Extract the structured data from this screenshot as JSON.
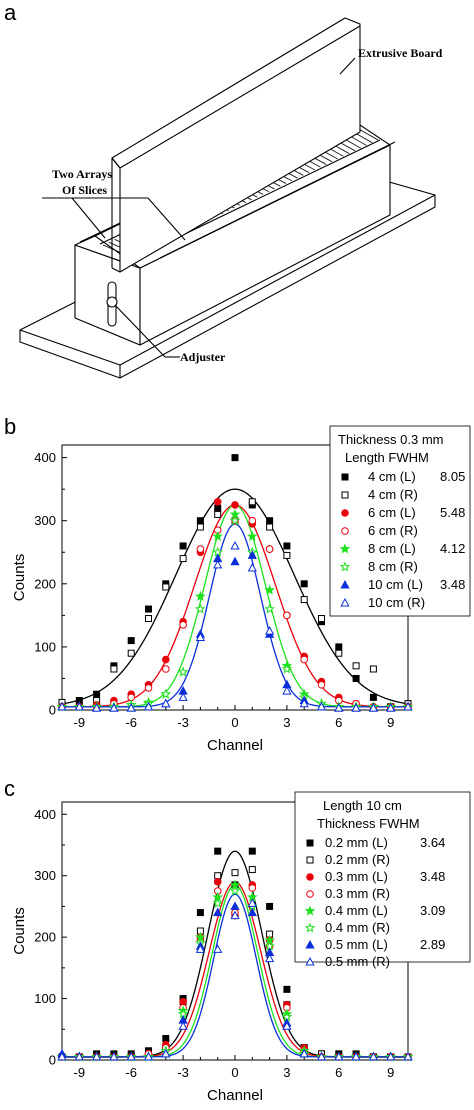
{
  "panels": {
    "a": "a",
    "b": "b",
    "c": "c"
  },
  "diagram": {
    "callouts": {
      "board": "Extrusive Board",
      "slices_line1": "Two Arrays",
      "slices_line2": "Of Slices",
      "adjuster": "Adjuster"
    }
  },
  "colors": {
    "black": "#000000",
    "red": "#e8000b",
    "green": "#1ee01e",
    "blue": "#0a2fd8"
  },
  "chart_data": [
    {
      "type": "scatter",
      "panel": "b",
      "xlabel": "Channel",
      "ylabel": "Counts",
      "xlim": [
        -10,
        10
      ],
      "ylim": [
        0,
        420
      ],
      "xticks": [
        -9,
        -6,
        -3,
        0,
        3,
        6,
        9
      ],
      "yticks": [
        0,
        100,
        200,
        300,
        400
      ],
      "legend_placement": "top-right",
      "legend": {
        "title_line1": "Thickness  0.3 mm",
        "title_line2": "Length   FWHM",
        "entries": [
          {
            "label": "4 cm (L)",
            "fwhm": "8.05"
          },
          {
            "label": "4 cm (R)",
            "fwhm": ""
          },
          {
            "label": "6 cm (L)",
            "fwhm": "5.48"
          },
          {
            "label": "6 cm (R)",
            "fwhm": ""
          },
          {
            "label": "8 cm (L)",
            "fwhm": "4.12"
          },
          {
            "label": "8 cm (R)",
            "fwhm": ""
          },
          {
            "label": "10 cm (L)",
            "fwhm": "3.48"
          },
          {
            "label": "10 cm (R)",
            "fwhm": ""
          }
        ]
      },
      "fits": [
        {
          "color": "black",
          "amplitude": 350,
          "center": 0,
          "fwhm": 8.05,
          "baseline": 5
        },
        {
          "color": "red",
          "amplitude": 325,
          "center": 0,
          "fwhm": 5.48,
          "baseline": 5
        },
        {
          "color": "green",
          "amplitude": 325,
          "center": 0,
          "fwhm": 4.12,
          "baseline": 5
        },
        {
          "color": "blue",
          "amplitude": 295,
          "center": 0,
          "fwhm": 3.48,
          "baseline": 5
        }
      ],
      "series": [
        {
          "label": "4 cm (L)",
          "color": "black",
          "marker": "square-filled",
          "x": [
            -10,
            -9,
            -8,
            -7,
            -6,
            -5,
            -4,
            -3,
            -2,
            -1,
            0,
            1,
            2,
            3,
            4,
            5,
            6,
            7,
            8,
            9,
            10
          ],
          "y": [
            10,
            15,
            25,
            70,
            110,
            160,
            200,
            260,
            300,
            320,
            400,
            325,
            300,
            260,
            200,
            140,
            100,
            50,
            20,
            5,
            10
          ]
        },
        {
          "label": "4 cm (R)",
          "color": "black",
          "marker": "square-open",
          "x": [
            -10,
            -9,
            -8,
            -7,
            -6,
            -5,
            -4,
            -3,
            -2,
            -1,
            0,
            1,
            2,
            3,
            4,
            5,
            6,
            7,
            8,
            9,
            10
          ],
          "y": [
            12,
            5,
            15,
            65,
            90,
            145,
            195,
            240,
            290,
            310,
            300,
            330,
            290,
            245,
            175,
            145,
            90,
            70,
            65,
            5,
            10
          ]
        },
        {
          "label": "6 cm (L)",
          "color": "red",
          "marker": "circle-filled",
          "x": [
            -10,
            -9,
            -8,
            -7,
            -6,
            -5,
            -4,
            -3,
            -2,
            -1,
            0,
            1,
            2,
            3,
            4,
            5,
            6,
            7,
            8,
            9,
            10
          ],
          "y": [
            5,
            5,
            8,
            15,
            25,
            40,
            80,
            140,
            250,
            330,
            325,
            295,
            255,
            150,
            85,
            45,
            20,
            10,
            5,
            5,
            5
          ]
        },
        {
          "label": "6 cm (R)",
          "color": "red",
          "marker": "circle-open",
          "x": [
            -10,
            -9,
            -8,
            -7,
            -6,
            -5,
            -4,
            -3,
            -2,
            -1,
            0,
            1,
            2,
            3,
            4,
            5,
            6,
            7,
            8,
            9,
            10
          ],
          "y": [
            5,
            5,
            5,
            10,
            20,
            35,
            65,
            135,
            255,
            285,
            300,
            300,
            255,
            150,
            80,
            40,
            15,
            10,
            5,
            5,
            5
          ]
        },
        {
          "label": "8 cm (L)",
          "color": "green",
          "marker": "star-filled",
          "x": [
            -10,
            -9,
            -8,
            -7,
            -6,
            -5,
            -4,
            -3,
            -2,
            -1,
            0,
            1,
            2,
            3,
            4,
            5,
            6,
            7,
            8,
            9,
            10
          ],
          "y": [
            5,
            5,
            5,
            5,
            8,
            12,
            25,
            60,
            180,
            275,
            310,
            275,
            190,
            70,
            25,
            10,
            5,
            5,
            5,
            5,
            5
          ]
        },
        {
          "label": "8 cm (R)",
          "color": "green",
          "marker": "star-open",
          "x": [
            -10,
            -9,
            -8,
            -7,
            -6,
            -5,
            -4,
            -3,
            -2,
            -1,
            0,
            1,
            2,
            3,
            4,
            5,
            6,
            7,
            8,
            9,
            10
          ],
          "y": [
            5,
            5,
            5,
            5,
            8,
            10,
            25,
            60,
            160,
            250,
            300,
            250,
            160,
            65,
            20,
            10,
            5,
            5,
            5,
            5,
            5
          ]
        },
        {
          "label": "10 cm (L)",
          "color": "blue",
          "marker": "triangle-filled",
          "x": [
            -10,
            -9,
            -8,
            -7,
            -6,
            -5,
            -4,
            -3,
            -2,
            -1,
            0,
            1,
            2,
            3,
            4,
            5,
            6,
            7,
            8,
            9,
            10
          ],
          "y": [
            5,
            5,
            3,
            3,
            3,
            5,
            10,
            30,
            120,
            240,
            235,
            245,
            120,
            40,
            15,
            5,
            3,
            3,
            3,
            3,
            5
          ]
        },
        {
          "label": "10 cm (R)",
          "color": "blue",
          "marker": "triangle-open",
          "x": [
            -10,
            -9,
            -8,
            -7,
            -6,
            -5,
            -4,
            -3,
            -2,
            -1,
            0,
            1,
            2,
            3,
            4,
            5,
            6,
            7,
            8,
            9,
            10
          ],
          "y": [
            5,
            5,
            3,
            3,
            3,
            5,
            10,
            20,
            115,
            230,
            260,
            225,
            125,
            30,
            10,
            5,
            3,
            3,
            3,
            3,
            5
          ]
        }
      ]
    },
    {
      "type": "scatter",
      "panel": "c",
      "xlabel": "Channel",
      "ylabel": "Counts",
      "xlim": [
        -10,
        10
      ],
      "ylim": [
        0,
        420
      ],
      "xticks": [
        -9,
        -6,
        -3,
        0,
        3,
        6,
        9
      ],
      "yticks": [
        0,
        100,
        200,
        300,
        400
      ],
      "legend_placement": "top-right",
      "legend": {
        "title_line1": "Length   10 cm",
        "title_line2": "Thickness  FWHM",
        "entries": [
          {
            "label": "0.2 mm (L)",
            "fwhm": "3.64"
          },
          {
            "label": "0.2 mm (R)",
            "fwhm": ""
          },
          {
            "label": "0.3 mm (L)",
            "fwhm": "3.48"
          },
          {
            "label": "0.3 mm (R)",
            "fwhm": ""
          },
          {
            "label": "0.4 mm (L)",
            "fwhm": "3.09"
          },
          {
            "label": "0.4 mm (R)",
            "fwhm": ""
          },
          {
            "label": "0.5 mm (L)",
            "fwhm": "2.89"
          },
          {
            "label": "0.5 mm (R)",
            "fwhm": ""
          }
        ]
      },
      "fits": [
        {
          "color": "black",
          "amplitude": 340,
          "center": 0,
          "fwhm": 3.64,
          "baseline": 5
        },
        {
          "color": "red",
          "amplitude": 290,
          "center": 0,
          "fwhm": 3.48,
          "baseline": 5
        },
        {
          "color": "green",
          "amplitude": 285,
          "center": 0,
          "fwhm": 3.09,
          "baseline": 5
        },
        {
          "color": "blue",
          "amplitude": 270,
          "center": 0,
          "fwhm": 2.89,
          "baseline": 5
        }
      ],
      "series": [
        {
          "label": "0.2 mm (L)",
          "color": "black",
          "marker": "square-filled",
          "x": [
            -10,
            -9,
            -8,
            -7,
            -6,
            -5,
            -4,
            -3,
            -2,
            -1,
            0,
            1,
            2,
            3,
            4,
            5,
            6,
            7,
            8,
            9,
            10
          ],
          "y": [
            5,
            5,
            10,
            10,
            10,
            15,
            35,
            100,
            240,
            340,
            285,
            340,
            250,
            115,
            20,
            10,
            10,
            10,
            5,
            5,
            5
          ]
        },
        {
          "label": "0.2 mm (R)",
          "color": "black",
          "marker": "square-open",
          "x": [
            -10,
            -9,
            -8,
            -7,
            -6,
            -5,
            -4,
            -3,
            -2,
            -1,
            0,
            1,
            2,
            3,
            4,
            5,
            6,
            7,
            8,
            9,
            10
          ],
          "y": [
            5,
            5,
            5,
            5,
            5,
            10,
            20,
            95,
            210,
            300,
            305,
            310,
            205,
            90,
            20,
            10,
            5,
            5,
            5,
            5,
            5
          ]
        },
        {
          "label": "0.3 mm (L)",
          "color": "red",
          "marker": "circle-filled",
          "x": [
            -10,
            -9,
            -8,
            -7,
            -6,
            -5,
            -4,
            -3,
            -2,
            -1,
            0,
            1,
            2,
            3,
            4,
            5,
            6,
            7,
            8,
            9,
            10
          ],
          "y": [
            5,
            5,
            5,
            5,
            5,
            10,
            25,
            95,
            200,
            290,
            235,
            285,
            195,
            90,
            20,
            5,
            5,
            5,
            5,
            5,
            5
          ]
        },
        {
          "label": "0.3 mm (R)",
          "color": "red",
          "marker": "circle-open",
          "x": [
            -10,
            -9,
            -8,
            -7,
            -6,
            -5,
            -4,
            -3,
            -2,
            -1,
            0,
            1,
            2,
            3,
            4,
            5,
            6,
            7,
            8,
            9,
            10
          ],
          "y": [
            5,
            5,
            5,
            5,
            5,
            10,
            20,
            85,
            195,
            275,
            240,
            280,
            185,
            85,
            15,
            5,
            5,
            5,
            5,
            5,
            5
          ]
        },
        {
          "label": "0.4 mm (L)",
          "color": "green",
          "marker": "star-filled",
          "x": [
            -10,
            -9,
            -8,
            -7,
            -6,
            -5,
            -4,
            -3,
            -2,
            -1,
            0,
            1,
            2,
            3,
            4,
            5,
            6,
            7,
            8,
            9,
            10
          ],
          "y": [
            5,
            5,
            5,
            5,
            5,
            5,
            15,
            80,
            200,
            265,
            285,
            265,
            195,
            75,
            15,
            5,
            5,
            5,
            5,
            5,
            5
          ]
        },
        {
          "label": "0.4 mm (R)",
          "color": "green",
          "marker": "star-open",
          "x": [
            -10,
            -9,
            -8,
            -7,
            -6,
            -5,
            -4,
            -3,
            -2,
            -1,
            0,
            1,
            2,
            3,
            4,
            5,
            6,
            7,
            8,
            9,
            10
          ],
          "y": [
            5,
            5,
            5,
            5,
            5,
            5,
            15,
            75,
            190,
            255,
            275,
            250,
            185,
            70,
            10,
            5,
            5,
            5,
            5,
            5,
            5
          ]
        },
        {
          "label": "0.5 mm (L)",
          "color": "blue",
          "marker": "triangle-filled",
          "x": [
            -10,
            -9,
            -8,
            -7,
            -6,
            -5,
            -4,
            -3,
            -2,
            -1,
            0,
            1,
            2,
            3,
            4,
            5,
            6,
            7,
            8,
            9,
            10
          ],
          "y": [
            10,
            5,
            5,
            5,
            5,
            5,
            10,
            65,
            185,
            240,
            250,
            240,
            175,
            60,
            10,
            5,
            5,
            5,
            5,
            5,
            5
          ]
        },
        {
          "label": "0.5 mm (R)",
          "color": "blue",
          "marker": "triangle-open",
          "x": [
            -10,
            -9,
            -8,
            -7,
            -6,
            -5,
            -4,
            -3,
            -2,
            -1,
            0,
            1,
            2,
            3,
            4,
            5,
            6,
            7,
            8,
            9,
            10
          ],
          "y": [
            5,
            5,
            5,
            5,
            5,
            5,
            10,
            55,
            180,
            180,
            235,
            255,
            165,
            55,
            10,
            5,
            5,
            5,
            5,
            5,
            5
          ]
        }
      ]
    }
  ]
}
